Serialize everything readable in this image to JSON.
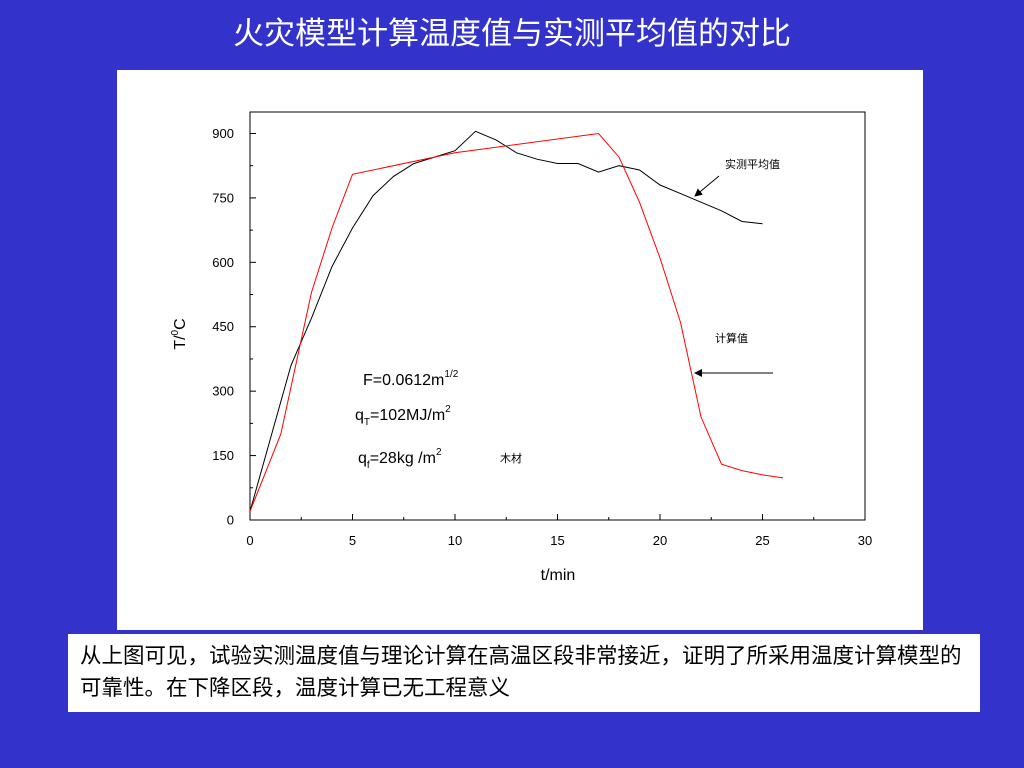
{
  "slide": {
    "title": "火灾模型计算温度值与实测平均值的对比",
    "caption": "从上图可见，试验实测温度值与理论计算在高温区段非常接近，证明了所采用温度计算模型的可靠性。在下降区段，温度计算已无工程意义"
  },
  "colors": {
    "background": "#3333cc",
    "measured_line": "#000000",
    "calculated_line": "#ff0000"
  },
  "chart_data": {
    "type": "line",
    "xlabel": "t/min",
    "ylabel": {
      "main": "T/",
      "sup": "0",
      "unit": "C"
    },
    "xlim": [
      0,
      30
    ],
    "ylim": [
      0,
      950
    ],
    "x_ticks": [
      0,
      5,
      10,
      15,
      20,
      25,
      30
    ],
    "y_ticks": [
      0,
      150,
      300,
      450,
      600,
      750,
      900
    ],
    "grid": false,
    "series": [
      {
        "name": "实测平均值",
        "color": "#000000",
        "points": [
          [
            0,
            20
          ],
          [
            1,
            190
          ],
          [
            2,
            360
          ],
          [
            3,
            470
          ],
          [
            4,
            590
          ],
          [
            5,
            680
          ],
          [
            6,
            755
          ],
          [
            7,
            800
          ],
          [
            8,
            830
          ],
          [
            9,
            845
          ],
          [
            10,
            860
          ],
          [
            11,
            905
          ],
          [
            12,
            885
          ],
          [
            13,
            855
          ],
          [
            14,
            840
          ],
          [
            15,
            830
          ],
          [
            16,
            830
          ],
          [
            17,
            810
          ],
          [
            18,
            825
          ],
          [
            19,
            815
          ],
          [
            20,
            780
          ],
          [
            21,
            760
          ],
          [
            22,
            740
          ],
          [
            23,
            720
          ],
          [
            24,
            695
          ],
          [
            25,
            690
          ]
        ]
      },
      {
        "name": "计算值",
        "color": "#ff0000",
        "points": [
          [
            0,
            20
          ],
          [
            1.5,
            200
          ],
          [
            3,
            530
          ],
          [
            4,
            680
          ],
          [
            5,
            805
          ],
          [
            10,
            855
          ],
          [
            17,
            900
          ],
          [
            18,
            845
          ],
          [
            19,
            740
          ],
          [
            20,
            610
          ],
          [
            21,
            460
          ],
          [
            22,
            240
          ],
          [
            23,
            130
          ],
          [
            24,
            115
          ],
          [
            25,
            105
          ],
          [
            26,
            98
          ]
        ]
      }
    ],
    "annotations": {
      "f_label": {
        "main": "F=0.0612m",
        "sup": "1/2"
      },
      "q_total": {
        "main": "q",
        "sub": "T",
        "value": "=102MJ/m",
        "sup": "2"
      },
      "q_fuel": {
        "main": "q",
        "sub": "f",
        "value": "=28kg /m",
        "sup": "2"
      },
      "material": "木材",
      "measured_label": "实测平均值",
      "calculated_label": "计算值"
    }
  }
}
